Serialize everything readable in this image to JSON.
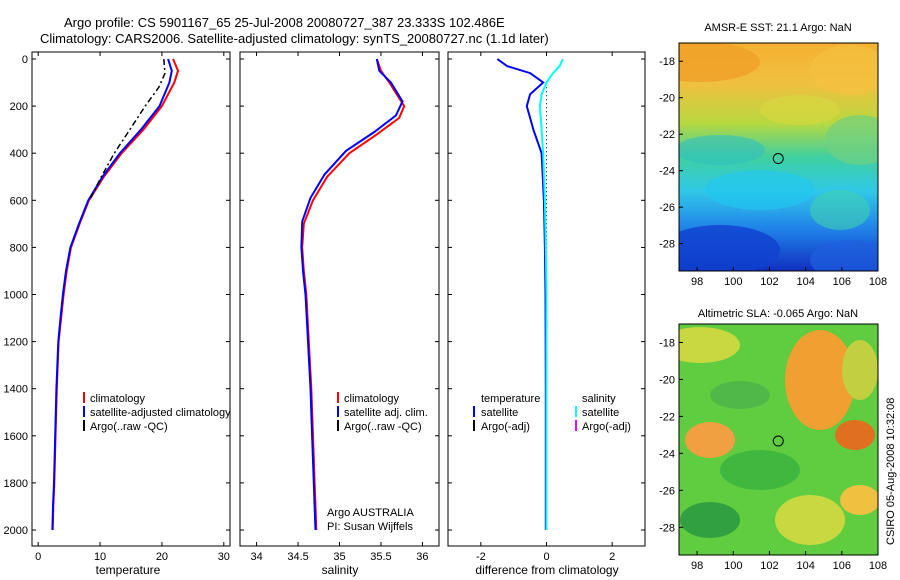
{
  "header": {
    "line1": "Argo profile: CS 5901167_65 25-Jul-2008 20080727_387 23.333S 102.486E",
    "line2": "Climatology: CARS2006. Satellite-adjusted climatology: synTS_20080727.nc (1.1d later)"
  },
  "side_stamp": "CSIRO 05-Aug-2008 10:32:08",
  "colors": {
    "climatology": "#ff0000",
    "satellite": "#0000ff",
    "argo": "#000000",
    "salinity_satellite": "#00ffff",
    "salinity_argo": "#ff00ff"
  },
  "chart_data": [
    {
      "type": "line",
      "panel": "temperature",
      "xlabel": "temperature",
      "xlim": [
        -1,
        31
      ],
      "xticks": [
        0,
        10,
        20,
        30
      ],
      "ylim": [
        2050,
        0
      ],
      "yticks": [
        0,
        200,
        400,
        600,
        800,
        1000,
        1200,
        1400,
        1600,
        1800,
        2000
      ],
      "legend": [
        "climatology",
        "satellite-adjusted climatology",
        "Argo(..raw -QC)"
      ],
      "series": [
        {
          "name": "climatology",
          "color": "#ff0000",
          "x": [
            21.8,
            22.6,
            22.0,
            20.0,
            17.0,
            13.5,
            10.6,
            8.2,
            6.7,
            5.3,
            4.6,
            4.1,
            3.7,
            3.3,
            3.0,
            2.8,
            2.6,
            2.45,
            2.35
          ],
          "y": [
            0,
            50,
            100,
            200,
            300,
            400,
            500,
            600,
            700,
            800,
            900,
            1000,
            1100,
            1200,
            1400,
            1600,
            1800,
            1900,
            2000
          ]
        },
        {
          "name": "satellite-adjusted climatology",
          "color": "#0000ff",
          "x": [
            21.0,
            21.6,
            21.2,
            19.6,
            16.6,
            13.2,
            10.4,
            8.1,
            6.6,
            5.2,
            4.5,
            4.0,
            3.6,
            3.25,
            2.95,
            2.75,
            2.55,
            2.4,
            2.3
          ],
          "y": [
            0,
            50,
            100,
            200,
            300,
            400,
            500,
            600,
            700,
            800,
            900,
            1000,
            1100,
            1200,
            1400,
            1600,
            1800,
            1900,
            2000
          ]
        },
        {
          "name": "Argo(..raw -QC)",
          "color": "#000000",
          "dashed": true,
          "x": [
            20.3,
            20.5,
            19.5,
            17.3,
            14.8,
            12.3,
            10.2,
            8.3
          ],
          "y": [
            0,
            60,
            120,
            200,
            300,
            400,
            500,
            600
          ]
        }
      ]
    },
    {
      "type": "line",
      "panel": "salinity",
      "xlabel": "salinity",
      "xlim": [
        33.8,
        36.2
      ],
      "xticks": [
        34,
        34.5,
        35,
        35.5,
        36
      ],
      "xticklabels": [
        "34",
        "34.5",
        "35",
        "35.5",
        "36"
      ],
      "ylim": [
        2050,
        0
      ],
      "legend": [
        "climatology",
        "satellite adj. clim.",
        "Argo(..raw -QC)"
      ],
      "annotation": [
        "Argo AUSTRALIA",
        "PI: Susan Wijffels"
      ],
      "series": [
        {
          "name": "climatology",
          "color": "#ff0000",
          "x": [
            35.45,
            35.5,
            35.6,
            35.78,
            35.72,
            35.45,
            35.12,
            34.85,
            34.68,
            34.57,
            34.55,
            34.57,
            34.6,
            34.63,
            34.66,
            34.68,
            34.7,
            34.71,
            34.72
          ],
          "y": [
            0,
            50,
            100,
            200,
            250,
            320,
            400,
            500,
            600,
            700,
            800,
            900,
            1000,
            1200,
            1400,
            1600,
            1800,
            1900,
            2000
          ]
        },
        {
          "name": "satellite adj. clim.",
          "color": "#0000ff",
          "x": [
            35.45,
            35.48,
            35.62,
            35.76,
            35.68,
            35.42,
            35.08,
            34.82,
            34.65,
            34.55,
            34.54,
            34.56,
            34.59,
            34.62,
            34.65,
            34.67,
            34.69,
            34.7,
            34.71
          ],
          "y": [
            0,
            50,
            100,
            180,
            240,
            310,
            390,
            490,
            590,
            690,
            800,
            900,
            1000,
            1200,
            1400,
            1600,
            1800,
            1900,
            2000
          ]
        }
      ]
    },
    {
      "type": "line",
      "panel": "difference",
      "xlabel": "difference from climatology",
      "xlim": [
        -3,
        3
      ],
      "xticks": [
        -2,
        0,
        2
      ],
      "ylim": [
        2050,
        0
      ],
      "legend_left": [
        "temperature",
        "satellite",
        "Argo(-adj)"
      ],
      "legend_right": [
        "salinity",
        "satellite",
        "Argo(-adj)"
      ],
      "series": [
        {
          "name": "temperature satellite",
          "color": "#0000ff",
          "x": [
            -1.5,
            -1.2,
            -0.5,
            -0.1,
            -0.5,
            -0.6,
            -0.4,
            -0.15,
            -0.08,
            -0.05,
            -0.03,
            -0.02,
            -0.02,
            -0.02
          ],
          "y": [
            0,
            30,
            60,
            100,
            150,
            200,
            300,
            400,
            600,
            800,
            1000,
            1400,
            1800,
            2000
          ]
        },
        {
          "name": "salinity satellite",
          "color": "#00ffff",
          "x": [
            0.5,
            0.4,
            0.2,
            0.0,
            -0.15,
            -0.2,
            -0.15,
            -0.1,
            -0.05,
            -0.02,
            0.0,
            0.0,
            0.0,
            0.0
          ],
          "y": [
            0,
            30,
            60,
            100,
            150,
            200,
            300,
            400,
            600,
            800,
            1000,
            1400,
            1800,
            2000
          ]
        }
      ]
    },
    {
      "type": "heatmap",
      "panel": "map_sst",
      "title": "AMSR-E SST: 21.1 Argo: NaN",
      "xticks": [
        98,
        100,
        102,
        104,
        106,
        108
      ],
      "yticks": [
        -18,
        -20,
        -22,
        -24,
        -26,
        -28
      ],
      "xlim": [
        97,
        108
      ],
      "ylim": [
        -29.5,
        -17
      ],
      "marker": {
        "lon": 102.486,
        "lat": -23.333
      }
    },
    {
      "type": "heatmap",
      "panel": "map_sla",
      "title": "Altimetric SLA: -0.065 Argo: NaN",
      "xticks": [
        98,
        100,
        102,
        104,
        106,
        108
      ],
      "yticks": [
        -18,
        -20,
        -22,
        -24,
        -26,
        -28
      ],
      "xlim": [
        97,
        108
      ],
      "ylim": [
        -29.5,
        -17
      ],
      "marker": {
        "lon": 102.486,
        "lat": -23.333
      }
    }
  ]
}
